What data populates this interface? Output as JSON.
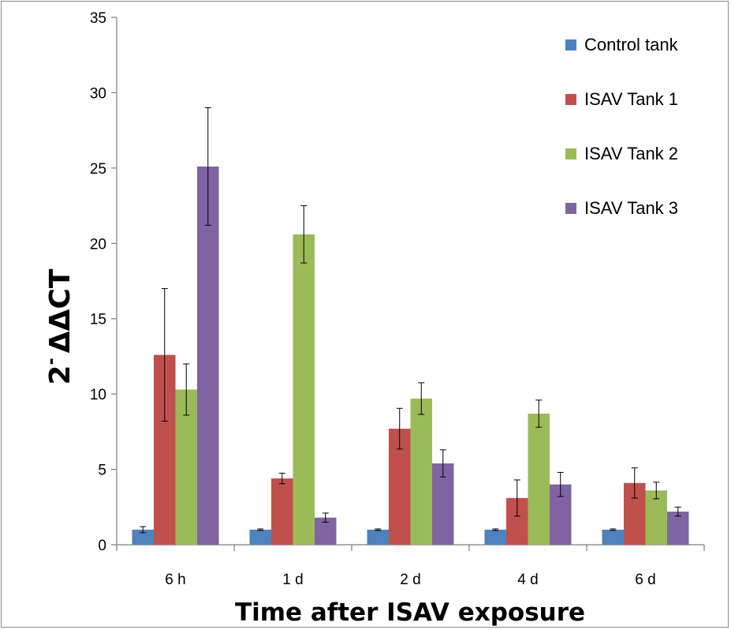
{
  "chart_data": {
    "type": "bar",
    "categories": [
      "6 h",
      "1 d",
      "2 d",
      "4 d",
      "6 d"
    ],
    "series": [
      {
        "name": "Control tank",
        "color": "#4f81bd",
        "values": [
          1.0,
          1.0,
          1.0,
          1.0,
          1.0
        ],
        "errors": [
          0.2,
          0.05,
          0.05,
          0.05,
          0.05
        ]
      },
      {
        "name": "ISAV Tank 1",
        "color": "#c0504d",
        "values": [
          12.6,
          4.4,
          7.7,
          3.1,
          4.1
        ],
        "errors": [
          4.4,
          0.35,
          1.35,
          1.2,
          1.0
        ]
      },
      {
        "name": "ISAV Tank 2",
        "color": "#9bbb59",
        "values": [
          10.3,
          20.6,
          9.7,
          8.7,
          3.6
        ],
        "errors": [
          1.7,
          1.9,
          1.05,
          0.9,
          0.55
        ]
      },
      {
        "name": "ISAV Tank 3",
        "color": "#8064a2",
        "values": [
          25.1,
          1.8,
          5.4,
          4.0,
          2.2
        ],
        "errors": [
          3.9,
          0.3,
          0.9,
          0.8,
          0.3
        ]
      }
    ],
    "title": "",
    "xlabel": "Time after ISAV exposure",
    "ylabel_base": "2",
    "ylabel_sup": "-",
    "ylabel_rest": "ΔΔCT",
    "ylim": [
      0,
      35
    ],
    "yticks": [
      "0",
      "5",
      "10",
      "15",
      "20",
      "25",
      "30",
      "35"
    ],
    "grid": false,
    "legend_position": "top-right"
  }
}
